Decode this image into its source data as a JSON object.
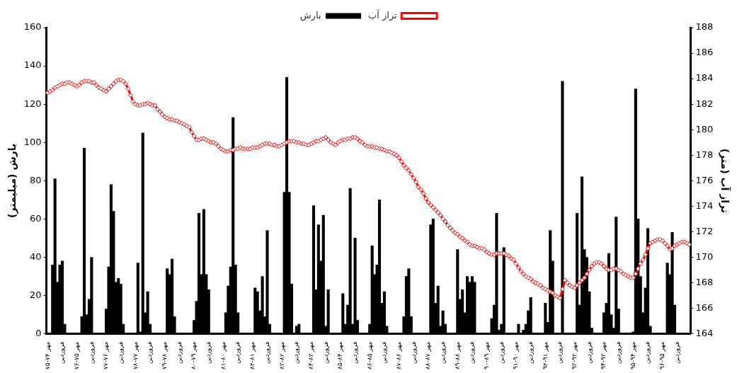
{
  "chart_data": {
    "type": "bar",
    "ylabel": "بارش (میلیمتر)",
    "y2label": "تراز آب (متر)",
    "categories": [
      "مهر ۷۴-۷۵",
      null,
      null,
      null,
      null,
      null,
      "فروردین",
      null,
      null,
      null,
      null,
      null,
      "مهر ۷۵-۷۶",
      null,
      null,
      null,
      null,
      null,
      "فروردین",
      null,
      null,
      null,
      null,
      null,
      "مهر ۷۶-۷۷",
      null,
      null,
      null,
      null,
      null,
      "فروردین",
      null,
      null,
      null,
      null,
      null,
      "مهر ۷۷-۷۸",
      null,
      null,
      null,
      null,
      null,
      "فروردین",
      null,
      null,
      null,
      null,
      null,
      "مهر ۷۸-۷۹",
      null,
      null,
      null,
      null,
      null,
      "فروردین",
      null,
      null,
      null,
      null,
      null,
      "مهر ۷۹-۸۰",
      null,
      null,
      null,
      null,
      null,
      "فروردین",
      null,
      null,
      null,
      null,
      null,
      "مهر ۸۰-۸۱",
      null,
      null,
      null,
      null,
      null,
      "فروردین",
      null,
      null,
      null,
      null,
      null,
      "مهر ۸۱-۸۲",
      null,
      null,
      null,
      null,
      null,
      "فروردین",
      null,
      null,
      null,
      null,
      null,
      "مهر ۸۲-۸۳",
      null,
      null,
      null,
      null,
      null,
      "فروردین",
      null,
      null,
      null,
      null,
      null,
      "مهر ۸۳-۸۴",
      null,
      null,
      null,
      null,
      null,
      "فروردین",
      null,
      null,
      null,
      null,
      null,
      "مهر ۸۴-۸۵",
      null,
      null,
      null,
      null,
      null,
      "فروردین",
      null,
      null,
      null,
      null,
      null,
      "مهر ۸۵-۸۶",
      null,
      null,
      null,
      null,
      null,
      "فروردین",
      null,
      null,
      null,
      null,
      null,
      "مهر ۸۶-۸۷",
      null,
      null,
      null,
      null,
      null,
      "فروردین",
      null,
      null,
      null,
      null,
      null,
      "مهر ۸۷-۸۸",
      null,
      null,
      null,
      null,
      null,
      "فروردین",
      null,
      null,
      null,
      null,
      null,
      "مهر ۸۸-۸۹",
      null,
      null,
      null,
      null,
      null,
      "فروردین",
      null,
      null,
      null,
      null,
      null,
      "مهر ۸۹-۹۰",
      null,
      null,
      null,
      null,
      null,
      "فروردین",
      null,
      null,
      null,
      null,
      null,
      "مهر ۹۰-۹۱",
      null,
      null,
      null,
      null,
      null,
      "فروردین",
      null,
      null,
      null,
      null,
      null,
      "مهر ۹۱-۹۲",
      null,
      null,
      null,
      null,
      null,
      "فروردین",
      null,
      null,
      null,
      null,
      null,
      "مهر ۹۲-۹۳",
      null,
      null,
      null,
      null,
      null,
      "فروردین",
      null,
      null,
      null,
      null,
      null,
      "مهر ۹۳-۹۴",
      null,
      null,
      null,
      null,
      null,
      "فروردین",
      null,
      null,
      null,
      null,
      null,
      "مهر ۹۴-۹۵",
      null,
      null,
      null,
      null,
      null,
      "فروردین",
      null,
      null,
      null,
      null,
      null,
      "مهر ۹۵-۹۶",
      null,
      null,
      null,
      null,
      null,
      "فروردین",
      null,
      null,
      null,
      null,
      null
    ],
    "series": [
      {
        "name": "بارش",
        "color": "#000000",
        "values": [
          0,
          0,
          36,
          81,
          27,
          36,
          38,
          5,
          0,
          0,
          0,
          0,
          0,
          0,
          9,
          97,
          10,
          18,
          40,
          0,
          0,
          0,
          0,
          0,
          13,
          35,
          78,
          64,
          27,
          29,
          26,
          5,
          0,
          0,
          0,
          0,
          0,
          37,
          1,
          105,
          11,
          22,
          5,
          0,
          0,
          0,
          0,
          0,
          0,
          34,
          31,
          39,
          9,
          0,
          0,
          0,
          0,
          0,
          0,
          0,
          7,
          17,
          63,
          31,
          65,
          31,
          23,
          0,
          0,
          0,
          0,
          0,
          0,
          11,
          25,
          35,
          113,
          36,
          11,
          0,
          0,
          0,
          0,
          0,
          0,
          24,
          22,
          12,
          30,
          9,
          54,
          5,
          0,
          0,
          0,
          0,
          0,
          74,
          134,
          74,
          26,
          0,
          4,
          5,
          0,
          0,
          0,
          0,
          0,
          67,
          23,
          57,
          38,
          62,
          4,
          23,
          0,
          0,
          0,
          0,
          0,
          21,
          5,
          15,
          76,
          5,
          50,
          7,
          0,
          0,
          0,
          0,
          5,
          46,
          31,
          36,
          70,
          16,
          22,
          4,
          0,
          0,
          0,
          0,
          0,
          0,
          9,
          30,
          34,
          9,
          0,
          0,
          0,
          0,
          0,
          0,
          0,
          57,
          60,
          16,
          25,
          4,
          12,
          5,
          0,
          0,
          0,
          0,
          44,
          18,
          23,
          11,
          30,
          27,
          30,
          27,
          0,
          0,
          0,
          0,
          0,
          0,
          8,
          15,
          63,
          2,
          5,
          45,
          0,
          0,
          0,
          0,
          0,
          5,
          0,
          2,
          5,
          12,
          19,
          0,
          0,
          0,
          0,
          0,
          16,
          6,
          54,
          38,
          0,
          0,
          0,
          132,
          0,
          0,
          0,
          0,
          0,
          63,
          15,
          82,
          44,
          40,
          22,
          3,
          0,
          0,
          0,
          0,
          11,
          16,
          42,
          10,
          3,
          61,
          13,
          0,
          0,
          0,
          0,
          0,
          1,
          128,
          60,
          30,
          11,
          24,
          55,
          4,
          0,
          0,
          0,
          0,
          0,
          0,
          37,
          31,
          53,
          15,
          0,
          0,
          0,
          0,
          0,
          0
        ]
      },
      {
        "name": "تراز آب",
        "type": "line",
        "axis": "y2",
        "color": "#ff0000",
        "values": [
          182.9,
          183.0,
          183.1,
          183.3,
          183.4,
          183.5,
          183.6,
          183.6,
          183.7,
          183.7,
          183.6,
          183.5,
          183.4,
          183.5,
          183.7,
          183.8,
          183.8,
          183.8,
          183.7,
          183.7,
          183.5,
          183.3,
          183.2,
          183.1,
          183.0,
          183.2,
          183.4,
          183.6,
          183.8,
          183.9,
          183.9,
          183.8,
          183.6,
          183.2,
          182.7,
          182.2,
          182.0,
          181.9,
          181.9,
          182.0,
          182.0,
          182.1,
          182.0,
          181.9,
          181.9,
          181.6,
          181.4,
          181.2,
          181.0,
          180.9,
          180.8,
          180.8,
          180.7,
          180.7,
          180.6,
          180.5,
          180.4,
          180.3,
          180.2,
          179.8,
          179.5,
          179.2,
          179.2,
          179.3,
          179.3,
          179.2,
          179.1,
          179.0,
          179.0,
          178.9,
          178.7,
          178.5,
          178.4,
          178.3,
          178.3,
          178.4,
          178.4,
          178.5,
          178.5,
          178.6,
          178.5,
          178.5,
          178.5,
          178.5,
          178.6,
          178.6,
          178.6,
          178.7,
          178.8,
          178.9,
          178.9,
          178.9,
          178.8,
          178.8,
          178.7,
          178.7,
          178.8,
          178.9,
          179.0,
          179.1,
          179.1,
          179.1,
          179.0,
          179.0,
          178.9,
          178.9,
          178.8,
          178.8,
          178.9,
          179.0,
          179.1,
          179.1,
          179.2,
          179.3,
          179.4,
          179.2,
          179.0,
          178.9,
          178.8,
          179.0,
          179.1,
          179.2,
          179.2,
          179.3,
          179.3,
          179.4,
          179.4,
          179.3,
          179.1,
          179.0,
          178.8,
          178.7,
          178.7,
          178.7,
          178.6,
          178.6,
          178.5,
          178.5,
          178.4,
          178.3,
          178.3,
          178.2,
          178.1,
          178.0,
          177.8,
          177.5,
          177.2,
          177.0,
          176.8,
          176.5,
          176.2,
          175.9,
          175.5,
          175.3,
          175.0,
          174.6,
          174.3,
          174.1,
          173.9,
          173.7,
          173.5,
          173.3,
          173.0,
          172.8,
          172.5,
          172.3,
          172.1,
          171.9,
          171.8,
          171.6,
          171.5,
          171.3,
          171.2,
          171.0,
          170.9,
          170.9,
          170.8,
          170.7,
          170.7,
          170.6,
          170.4,
          170.3,
          170.2,
          170.2,
          170.3,
          170.3,
          170.3,
          170.3,
          170.2,
          170.1,
          169.9,
          169.8,
          169.5,
          169.2,
          168.9,
          168.7,
          168.5,
          168.4,
          168.3,
          168.1,
          168.0,
          167.9,
          167.8,
          167.6,
          167.5,
          167.4,
          167.3,
          167.2,
          167.0,
          166.9,
          166.8,
          167.5,
          168.2,
          168.0,
          167.8,
          167.7,
          167.6,
          167.8,
          168.0,
          168.2,
          168.4,
          168.7,
          169.0,
          169.3,
          169.5,
          169.6,
          169.6,
          169.5,
          169.3,
          169.1,
          169.0,
          169.0,
          169.1,
          169.1,
          169.0,
          168.9,
          168.7,
          168.6,
          168.5,
          168.4,
          168.4,
          168.7,
          169.1,
          169.5,
          169.8,
          170.2,
          170.7,
          171.1,
          171.2,
          171.3,
          171.4,
          171.4,
          171.3,
          171.1,
          170.9,
          170.6,
          170.7,
          170.9,
          171.0,
          171.1,
          171.2,
          171.2,
          171.1,
          171.0
        ]
      }
    ],
    "ylim": [
      0,
      160
    ],
    "yticks": [
      0,
      20,
      40,
      60,
      80,
      100,
      120,
      140,
      160
    ],
    "y2lim": [
      164,
      188
    ],
    "y2ticks": [
      164,
      166,
      168,
      170,
      172,
      174,
      176,
      178,
      180,
      182,
      184,
      186,
      188
    ],
    "legend": "top",
    "grid": false,
    "marker": "diamond",
    "line_style": "solid"
  }
}
